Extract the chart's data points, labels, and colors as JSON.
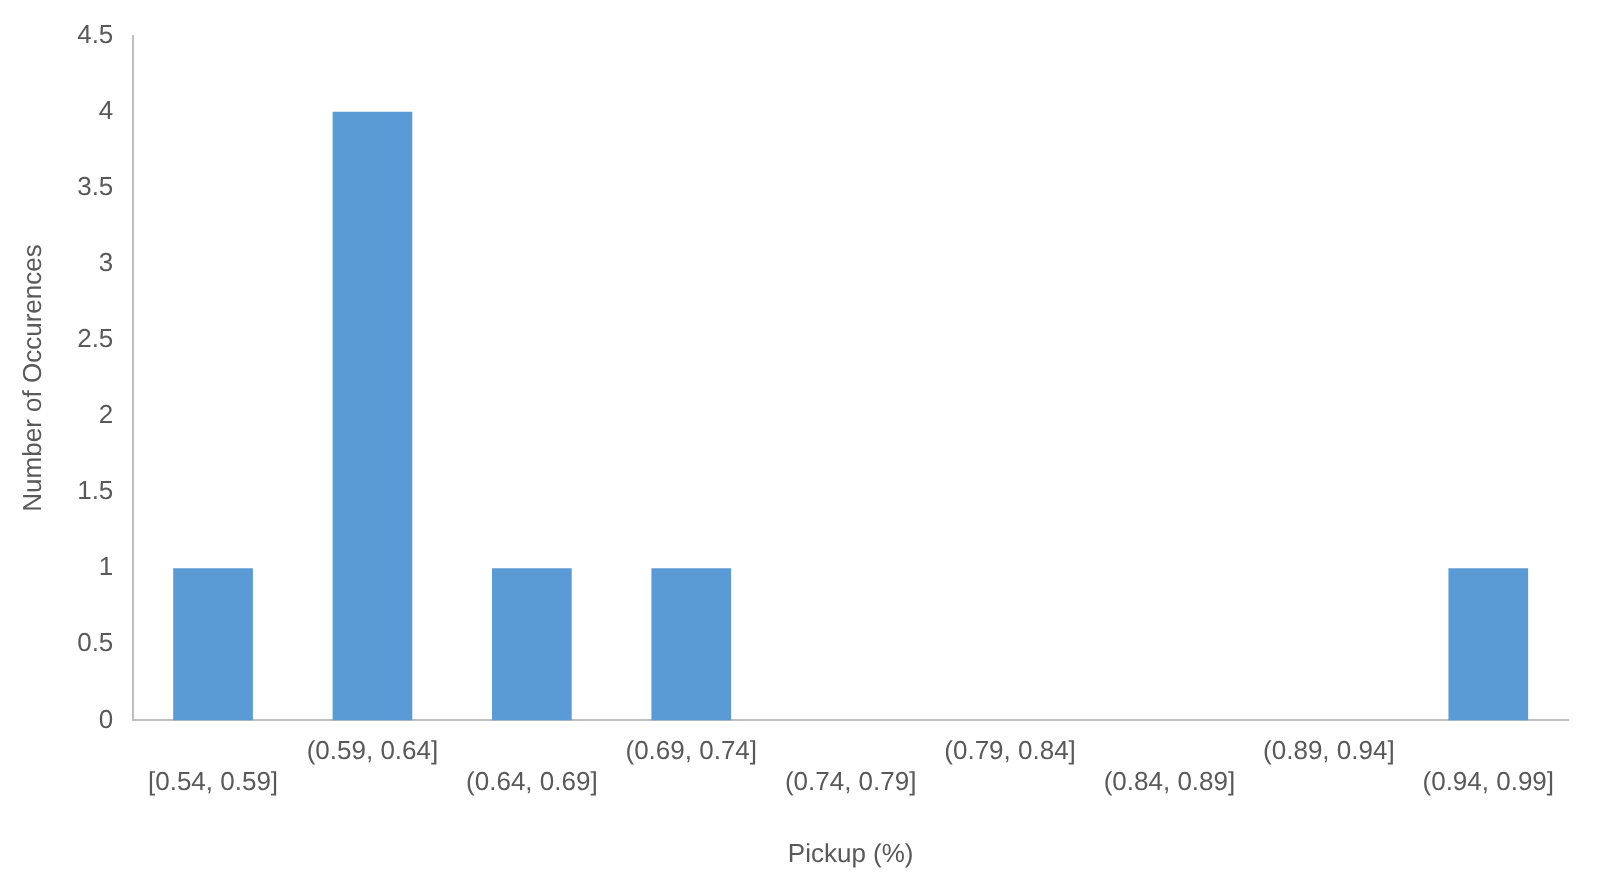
{
  "chart_data": {
    "type": "bar",
    "xlabel": "Pickup (%)",
    "ylabel": "Number of Occurences",
    "categories": [
      "[0.54, 0.59]",
      "(0.59, 0.64]",
      "(0.64, 0.69]",
      "(0.69, 0.74]",
      "(0.74, 0.79]",
      "(0.79, 0.84]",
      "(0.84, 0.89]",
      "(0.89, 0.94]",
      "(0.94, 0.99]"
    ],
    "values": [
      1,
      4,
      1,
      1,
      0,
      0,
      0,
      0,
      1
    ],
    "color": "#5b9bd5",
    "ylim": [
      0,
      4.5
    ],
    "yticks": [
      0,
      0.5,
      1,
      1.5,
      2,
      2.5,
      3,
      3.5,
      4,
      4.5
    ],
    "grid": false,
    "legend": false
  }
}
